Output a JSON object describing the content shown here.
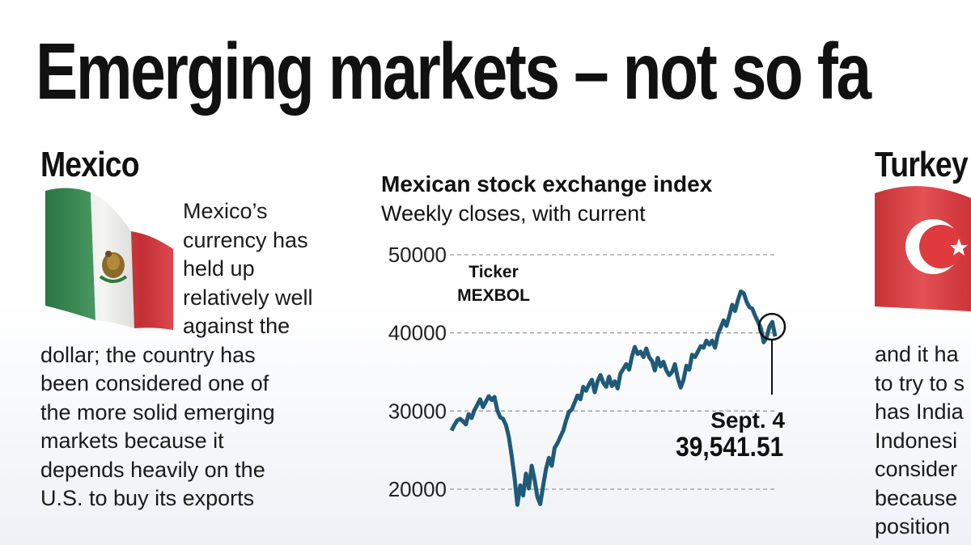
{
  "headline": "Emerging markets  – not so fa",
  "mexico": {
    "title": "Mexico",
    "text_lines": [
      "Mexico’s",
      "currency has",
      "held up",
      "relatively well",
      "against the",
      "dollar; the country has",
      "been considered one of",
      "the more solid emerging",
      "markets because it",
      "depends heavily on the",
      "U.S. to buy its exports"
    ],
    "flag_colors": {
      "green": "#2f8a4c",
      "white": "#f4f4f2",
      "red": "#d8343a"
    }
  },
  "turkey": {
    "title": "Turkey",
    "text_lines": [
      "and it ha",
      "to try to s",
      "has India",
      "Indonesi",
      "consider",
      "because",
      "position"
    ],
    "flag_colors": {
      "red": "#e03a3e",
      "white": "#ffffff"
    }
  },
  "chart_data": {
    "type": "line",
    "title": "Mexican stock exchange index",
    "subtitle": "Weekly closes, with current",
    "annotation_ticker_label": "Ticker",
    "annotation_ticker": "MEXBOL",
    "callout_date": "Sept. 4",
    "callout_value": "39,541.51",
    "ylim": [
      17000,
      52000
    ],
    "yticks": [
      20000,
      30000,
      40000,
      50000
    ],
    "ytick_labels": [
      "20000",
      "30000",
      "40000",
      "50000"
    ],
    "grid": "horizontal dashed",
    "line_color": "#1f5a78",
    "series": [
      {
        "values": [
          27500,
          28200,
          28800,
          29000,
          28700,
          28300,
          29600,
          29100,
          30100,
          30800,
          31500,
          30500,
          31200,
          31900,
          31400,
          31800,
          30100,
          29200,
          29000,
          28200,
          26700,
          24300,
          21500,
          18000,
          20500,
          19200,
          22000,
          20100,
          23000,
          21200,
          19000,
          18100,
          20500,
          22600,
          24000,
          23000,
          25300,
          25900,
          26700,
          27500,
          28800,
          29900,
          30200,
          31100,
          32000,
          31500,
          33100,
          32600,
          33400,
          34000,
          32400,
          33800,
          34600,
          33600,
          33100,
          34400,
          33200,
          33800,
          32900,
          34800,
          35400,
          36000,
          35300,
          37000,
          38200,
          37300,
          37600,
          36900,
          38000,
          36900,
          36400,
          35200,
          36800,
          35700,
          36300,
          35200,
          34600,
          35000,
          36000,
          34200,
          33000,
          34000,
          35800,
          35300,
          37200,
          36900,
          37600,
          38300,
          38100,
          39000,
          38500,
          39000,
          38100,
          39800,
          40700,
          41600,
          40900,
          42200,
          43600,
          42800,
          44200,
          45300,
          45100,
          44000,
          43300,
          43100,
          42200,
          41400,
          40600,
          38800,
          39400,
          40800,
          41400,
          39541.51
        ]
      }
    ]
  }
}
